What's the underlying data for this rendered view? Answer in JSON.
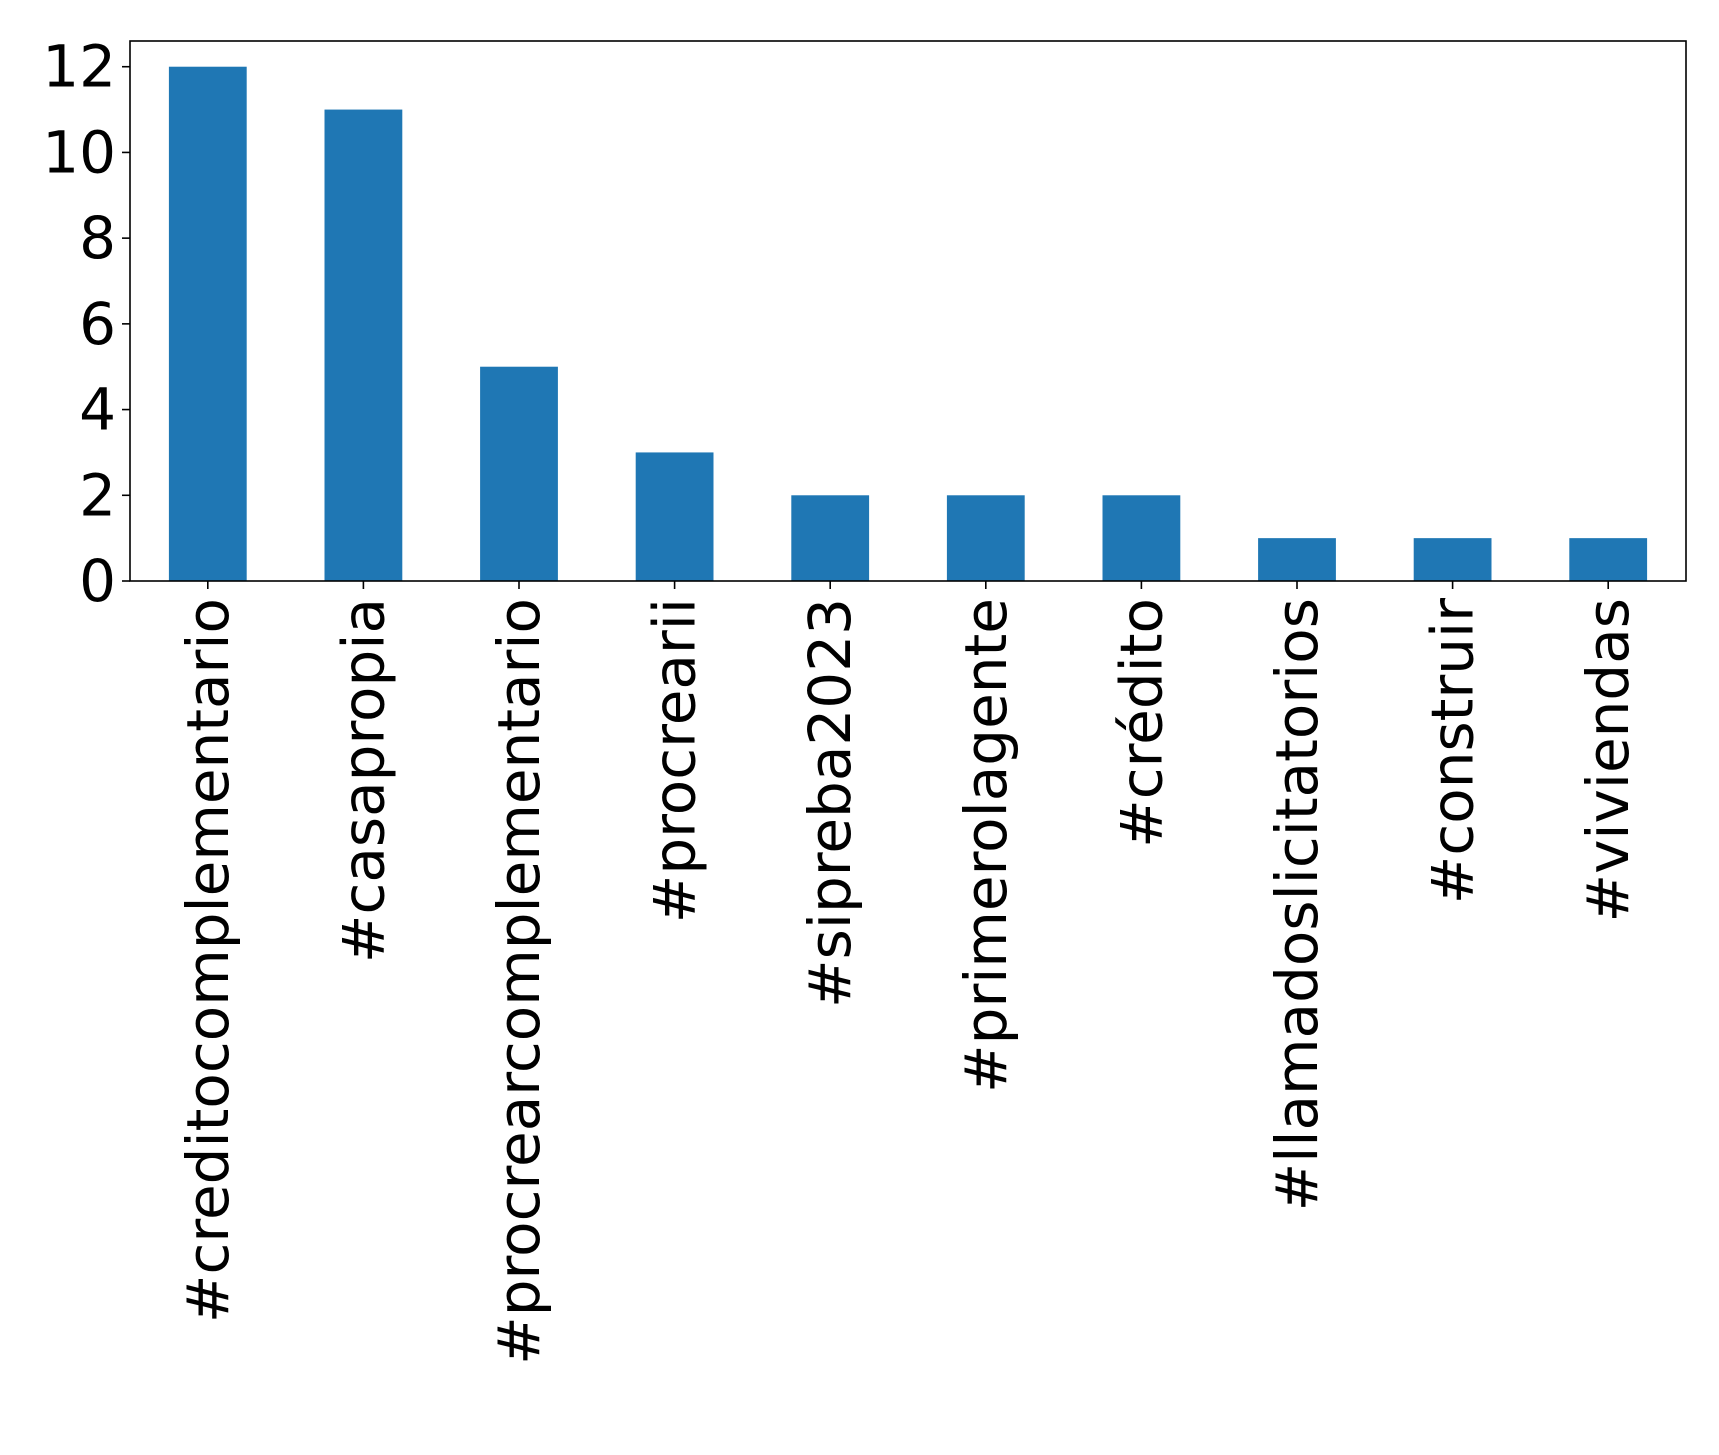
{
  "chart_data": {
    "type": "bar",
    "title": "",
    "xlabel": "",
    "ylabel": "",
    "categories": [
      "#creditocomplementario",
      "#casapropia",
      "#procrearcomplementario",
      "#procrearii",
      "#sipreba2023",
      "#primerolagente",
      "#crédito",
      "#llamadoslicitatorios",
      "#construir",
      "#viviendas"
    ],
    "values": [
      12,
      11,
      5,
      3,
      2,
      2,
      2,
      1,
      1,
      1
    ],
    "ylim": [
      0,
      12.6
    ],
    "yticks": [
      0,
      2,
      4,
      6,
      8,
      10,
      12
    ],
    "bar_color": "#1f77b4",
    "grid": false,
    "legend": "none"
  }
}
